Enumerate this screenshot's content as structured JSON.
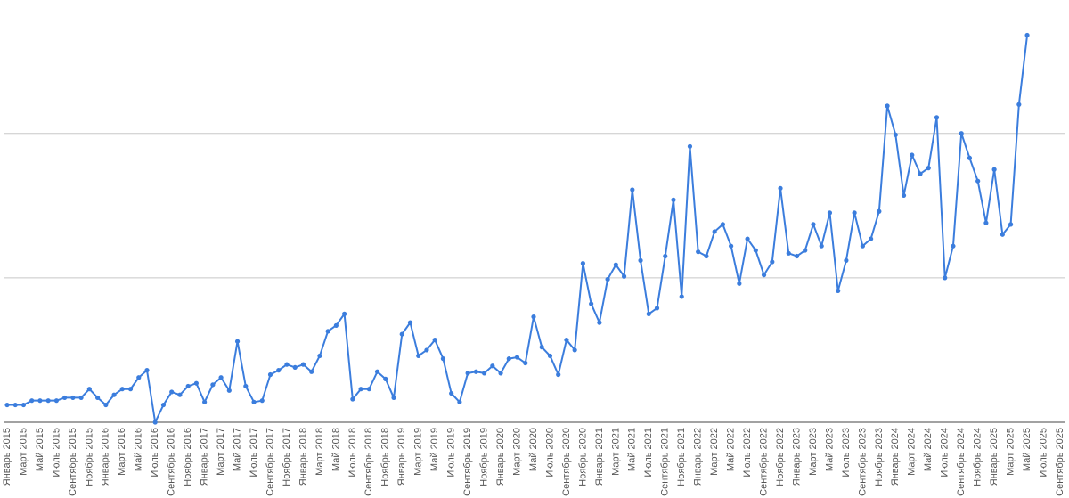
{
  "chart_data": {
    "type": "line",
    "color": "#3b7ddd",
    "ylim": [
      0,
      2.8
    ],
    "yticks": [
      1,
      2
    ],
    "grid": true,
    "categories": [
      "Январь 2015",
      null,
      "Март 2015",
      null,
      "Май 2015",
      null,
      "Июль 2015",
      null,
      "Сентябрь 2015",
      null,
      "Ноябрь 2015",
      null,
      "Январь 2016",
      null,
      "Март 2016",
      null,
      "Май 2016",
      null,
      "Июль 2016",
      null,
      "Сентябрь 2016",
      null,
      "Ноябрь 2016",
      null,
      "Январь 2017",
      null,
      "Март 2017",
      null,
      "Май 2017",
      null,
      "Июль 2017",
      null,
      "Сентябрь 2017",
      null,
      "Ноябрь 2017",
      null,
      "Январь 2018",
      null,
      "Март 2018",
      null,
      "Май 2018",
      null,
      "Июль 2018",
      null,
      "Сентябрь 2018",
      null,
      "Ноябрь 2018",
      null,
      "Январь 2019",
      null,
      "Март 2019",
      null,
      "Май 2019",
      null,
      "Июль 2019",
      null,
      "Сентябрь 2019",
      null,
      "Ноябрь 2019",
      null,
      "Январь 2020",
      null,
      "Март 2020",
      null,
      "Май 2020",
      null,
      "Июль 2020",
      null,
      "Сентябрь 2020",
      null,
      "Ноябрь 2020",
      null,
      "Январь 2021",
      null,
      "Март 2021",
      null,
      "Май 2021",
      null,
      "Июль 2021",
      null,
      "Сентябрь 2021",
      null,
      "Ноябрь 2021",
      null,
      "Январь 2022",
      null,
      "Март 2022",
      null,
      "Май 2022",
      null,
      "Июль 2022",
      null,
      "Сентябрь 2022",
      null,
      "Ноябрь 2022",
      null,
      "Январь 2023",
      null,
      "Март 2023",
      null,
      "Май 2023",
      null,
      "Июль 2023",
      null,
      "Сентябрь 2023",
      null,
      "Ноябрь 2023",
      null,
      "Январь 2024",
      null,
      "Март 2024",
      null,
      "Май 2024",
      null,
      "Июль 2024",
      null,
      "Сентябрь 2024",
      null,
      "Ноябрь 2024",
      null,
      "Январь 2025",
      null,
      "Март 2025",
      null,
      "Май 2025",
      null,
      "Июль 2025",
      null,
      "Сентябрь 2025"
    ],
    "values": [
      0.12,
      0.12,
      0.12,
      0.15,
      0.15,
      0.15,
      0.15,
      0.17,
      0.17,
      0.17,
      0.23,
      0.17,
      0.12,
      0.19,
      0.23,
      0.23,
      0.31,
      0.36,
      0,
      0.12,
      0.21,
      0.19,
      0.25,
      0.27,
      0.14,
      0.26,
      0.31,
      0.22,
      0.56,
      0.25,
      0.14,
      0.15,
      0.33,
      0.36,
      0.4,
      0.38,
      0.4,
      0.35,
      0.46,
      0.63,
      0.67,
      0.75,
      0.16,
      0.23,
      0.23,
      0.35,
      0.3,
      0.17,
      0.61,
      0.69,
      0.46,
      0.5,
      0.57,
      0.44,
      0.2,
      0.14,
      0.34,
      0.35,
      0.34,
      0.39,
      0.34,
      0.44,
      0.45,
      0.41,
      0.73,
      0.52,
      0.46,
      0.33,
      0.57,
      0.5,
      1.1,
      0.82,
      0.69,
      0.99,
      1.09,
      1.01,
      1.61,
      1.12,
      0.75,
      0.79,
      1.15,
      1.54,
      0.87,
      1.91,
      1.18,
      1.15,
      1.32,
      1.37,
      1.22,
      0.96,
      1.27,
      1.19,
      1.02,
      1.11,
      1.62,
      1.17,
      1.15,
      1.19,
      1.37,
      1.22,
      1.45,
      0.91,
      1.12,
      1.45,
      1.22,
      1.27,
      1.46,
      2.19,
      1.99,
      1.57,
      1.85,
      1.72,
      1.76,
      2.11,
      1.0,
      1.22,
      2.0,
      1.83,
      1.67,
      1.38,
      1.75,
      1.3,
      1.37,
      2.2,
      2.68,
      null,
      null,
      null,
      null
    ]
  }
}
